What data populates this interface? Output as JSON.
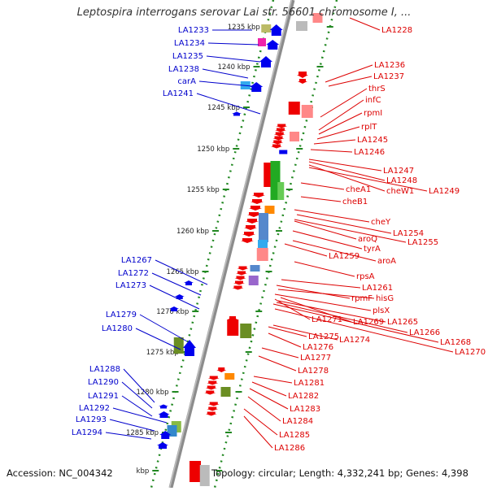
{
  "title": "Leptospira interrogans serovar Lai str. 56601 chromosome I, ...",
  "footer": {
    "accession": "Accession: NC_004342",
    "summary": "Topology: circular; Length: 4,332,241 bp; Genes: 4,398"
  },
  "colors": {
    "axis": "#888888",
    "ruler": "#228822",
    "plus_label": "#0000cc",
    "minus_label": "#dd0000"
  },
  "kbp_ticks": [
    "1235 kbp",
    "1240 kbp",
    "1245 kbp",
    "1250 kbp",
    "1255 kbp",
    "1260 kbp",
    "1265 kbp",
    "1270 kbp",
    "1275 kbp",
    "1280 kbp",
    "1285 kbp",
    "kbp"
  ],
  "left_labels": [
    "LA1233",
    "LA1234",
    "LA1235",
    "LA1238",
    "carA",
    "LA1241",
    "LA1267",
    "LA1272",
    "LA1273",
    "LA1279",
    "LA1280",
    "LA1288",
    "LA1290",
    "LA1291",
    "LA1292",
    "LA1293",
    "LA1294"
  ],
  "right_labels": [
    "LA1228",
    "LA1236",
    "LA1237",
    "thrS",
    "infC",
    "rpmI",
    "rplT",
    "LA1245",
    "LA1246",
    "LA1247",
    "LA1248",
    "cheW1",
    "LA1249",
    "cheA1",
    "cheB1",
    "cheY",
    "LA1254",
    "aroQ",
    "LA1255",
    "tyrA",
    "LA1259",
    "aroA",
    "rpsA",
    "LA1261",
    "rpmF",
    "hisG",
    "plsX",
    "LA1271",
    "LA1269",
    "LA1265",
    "LA1266",
    "LA1275",
    "LA1274",
    "LA1268",
    "LA1276",
    "LA1270",
    "LA1277",
    "LA1278",
    "LA1281",
    "LA1282",
    "LA1283",
    "LA1284",
    "LA1285",
    "LA1286"
  ]
}
